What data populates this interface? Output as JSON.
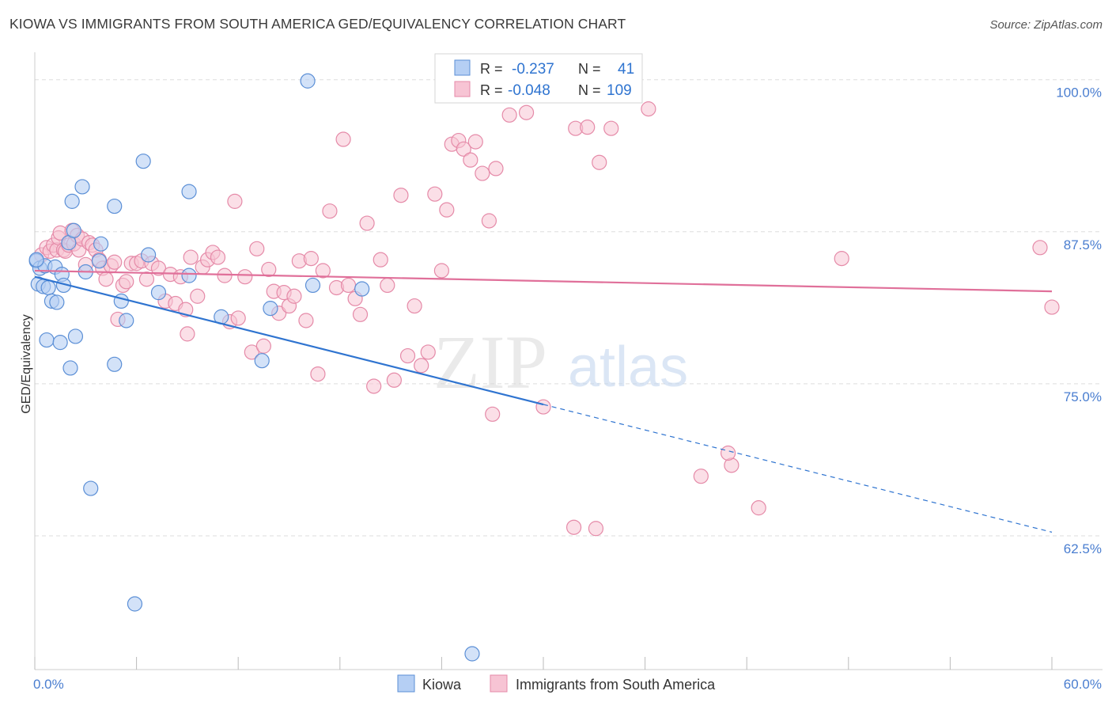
{
  "header": {
    "title": "KIOWA VS IMMIGRANTS FROM SOUTH AMERICA GED/EQUIVALENCY CORRELATION CHART",
    "source": "Source: ZipAtlas.com"
  },
  "watermark": {
    "zip": "ZIP",
    "atlas": "atlas"
  },
  "colors": {
    "kiowa_fill": "#b5cff4",
    "kiowa_stroke": "#5b8fd6",
    "kiowa_line": "#2f74d0",
    "immig_fill": "#f7c4d4",
    "immig_stroke": "#e58aa8",
    "immig_line": "#e0709a",
    "axis_label": "#4a7ed0",
    "grid": "#dddddd"
  },
  "chart_data": {
    "type": "scatter",
    "title": "KIOWA VS IMMIGRANTS FROM SOUTH AMERICA GED/EQUIVALENCY CORRELATION CHART",
    "xlabel": "",
    "ylabel": "GED/Equivalency",
    "xlim": [
      0,
      60
    ],
    "ylim": [
      51.5,
      102
    ],
    "x_tick_labels": [
      "0.0%",
      "60.0%"
    ],
    "y_ticks": [
      {
        "value": 100,
        "label": "100.0%"
      },
      {
        "value": 87.5,
        "label": "87.5%"
      },
      {
        "value": 75,
        "label": "75.0%"
      },
      {
        "value": 62.5,
        "label": "62.5%"
      }
    ],
    "grid": true,
    "legend_position": "top-center",
    "legend": [
      {
        "series": "Kiowa",
        "r_label": "R =",
        "r_value": "-0.237",
        "n_label": "N =",
        "n_value": "41"
      },
      {
        "series": "Immigrants from South America",
        "r_label": "R =",
        "r_value": "-0.048",
        "n_label": "N =",
        "n_value": "109"
      }
    ],
    "bottom_legend": [
      "Kiowa",
      "Immigrants from South America"
    ],
    "series": [
      {
        "name": "Kiowa",
        "trend": {
          "x0": 0,
          "y0": 83.8,
          "x1": 30,
          "y1": 73.3,
          "dash_x1": 60,
          "dash_y1": 62.8
        },
        "points": [
          [
            0.1,
            85.1
          ],
          [
            0.2,
            83.2
          ],
          [
            0.3,
            84.5
          ],
          [
            0.5,
            83.0
          ],
          [
            0.6,
            84.7
          ],
          [
            0.7,
            78.6
          ],
          [
            0.8,
            82.9
          ],
          [
            1.0,
            81.8
          ],
          [
            1.2,
            84.6
          ],
          [
            1.3,
            81.7
          ],
          [
            1.5,
            78.4
          ],
          [
            1.6,
            84.0
          ],
          [
            1.7,
            83.1
          ],
          [
            2.0,
            86.6
          ],
          [
            2.1,
            76.3
          ],
          [
            2.2,
            90.0
          ],
          [
            2.3,
            87.6
          ],
          [
            2.4,
            78.9
          ],
          [
            2.8,
            91.2
          ],
          [
            3.0,
            84.2
          ],
          [
            3.3,
            66.4
          ],
          [
            3.8,
            85.1
          ],
          [
            3.9,
            86.5
          ],
          [
            4.7,
            89.6
          ],
          [
            4.7,
            76.6
          ],
          [
            5.1,
            81.8
          ],
          [
            5.4,
            80.2
          ],
          [
            5.9,
            56.9
          ],
          [
            6.4,
            93.3
          ],
          [
            6.7,
            85.6
          ],
          [
            7.3,
            82.5
          ],
          [
            9.1,
            83.9
          ],
          [
            9.1,
            90.8
          ],
          [
            11.0,
            80.5
          ],
          [
            13.4,
            76.9
          ],
          [
            13.9,
            81.2
          ],
          [
            16.1,
            99.9
          ],
          [
            16.4,
            83.1
          ],
          [
            19.3,
            82.8
          ],
          [
            25.8,
            52.8
          ],
          [
            0.1,
            85.2
          ]
        ]
      },
      {
        "name": "Immigrants from South America",
        "trend": {
          "x0": 0,
          "y0": 84.3,
          "x1": 60,
          "y1": 82.6
        },
        "points": [
          [
            0.4,
            85.6
          ],
          [
            0.7,
            86.2
          ],
          [
            0.9,
            85.9
          ],
          [
            1.1,
            86.4
          ],
          [
            1.3,
            86.0
          ],
          [
            1.4,
            87.0
          ],
          [
            1.5,
            87.4
          ],
          [
            1.7,
            86.0
          ],
          [
            1.8,
            85.9
          ],
          [
            2.0,
            86.4
          ],
          [
            2.2,
            87.6
          ],
          [
            2.3,
            86.5
          ],
          [
            2.5,
            87.2
          ],
          [
            2.6,
            86.0
          ],
          [
            2.8,
            86.9
          ],
          [
            3.0,
            84.8
          ],
          [
            3.2,
            86.6
          ],
          [
            3.4,
            86.4
          ],
          [
            3.6,
            86.0
          ],
          [
            3.8,
            85.2
          ],
          [
            4.0,
            84.5
          ],
          [
            4.2,
            83.6
          ],
          [
            4.5,
            84.7
          ],
          [
            4.7,
            85.0
          ],
          [
            4.9,
            80.3
          ],
          [
            5.2,
            83.1
          ],
          [
            5.4,
            83.4
          ],
          [
            5.7,
            84.9
          ],
          [
            6.0,
            84.9
          ],
          [
            6.3,
            85.1
          ],
          [
            6.6,
            83.6
          ],
          [
            6.9,
            84.9
          ],
          [
            7.3,
            84.5
          ],
          [
            7.7,
            81.8
          ],
          [
            8.0,
            84.0
          ],
          [
            8.3,
            81.6
          ],
          [
            8.6,
            83.8
          ],
          [
            8.9,
            81.1
          ],
          [
            9.0,
            79.1
          ],
          [
            9.2,
            85.4
          ],
          [
            9.6,
            82.2
          ],
          [
            9.9,
            84.6
          ],
          [
            10.2,
            85.2
          ],
          [
            10.5,
            85.8
          ],
          [
            10.8,
            85.4
          ],
          [
            11.2,
            83.9
          ],
          [
            11.5,
            80.1
          ],
          [
            11.8,
            90.0
          ],
          [
            12.0,
            80.4
          ],
          [
            12.4,
            83.8
          ],
          [
            12.8,
            77.6
          ],
          [
            13.1,
            86.1
          ],
          [
            13.5,
            78.1
          ],
          [
            13.8,
            84.4
          ],
          [
            14.1,
            82.6
          ],
          [
            14.4,
            80.8
          ],
          [
            14.7,
            82.5
          ],
          [
            15.0,
            81.4
          ],
          [
            15.3,
            82.2
          ],
          [
            15.6,
            85.1
          ],
          [
            16.0,
            80.2
          ],
          [
            16.3,
            85.3
          ],
          [
            16.7,
            75.8
          ],
          [
            17.0,
            84.3
          ],
          [
            17.4,
            89.2
          ],
          [
            17.8,
            82.9
          ],
          [
            18.2,
            95.1
          ],
          [
            18.5,
            83.1
          ],
          [
            18.9,
            82.0
          ],
          [
            19.2,
            80.7
          ],
          [
            19.6,
            88.2
          ],
          [
            20.0,
            74.8
          ],
          [
            20.4,
            85.2
          ],
          [
            20.8,
            83.1
          ],
          [
            21.2,
            75.3
          ],
          [
            21.6,
            90.5
          ],
          [
            22.0,
            77.3
          ],
          [
            22.4,
            81.4
          ],
          [
            22.8,
            76.5
          ],
          [
            23.2,
            77.6
          ],
          [
            23.6,
            90.6
          ],
          [
            24.0,
            84.3
          ],
          [
            24.3,
            89.3
          ],
          [
            24.6,
            94.7
          ],
          [
            25.0,
            95.0
          ],
          [
            25.3,
            94.3
          ],
          [
            25.7,
            93.4
          ],
          [
            26.0,
            94.9
          ],
          [
            26.4,
            92.3
          ],
          [
            26.8,
            88.4
          ],
          [
            27.2,
            92.7
          ],
          [
            28.0,
            97.1
          ],
          [
            29.0,
            97.3
          ],
          [
            30.0,
            73.1
          ],
          [
            31.9,
            96.0
          ],
          [
            32.6,
            96.1
          ],
          [
            33.3,
            93.2
          ],
          [
            34.0,
            96.0
          ],
          [
            36.2,
            97.6
          ],
          [
            39.3,
            67.4
          ],
          [
            41.1,
            68.3
          ],
          [
            42.7,
            64.8
          ],
          [
            47.6,
            85.3
          ],
          [
            60.0,
            81.3
          ],
          [
            27.0,
            72.5
          ],
          [
            31.8,
            63.2
          ],
          [
            33.1,
            63.1
          ],
          [
            40.9,
            69.3
          ],
          [
            59.3,
            86.2
          ]
        ]
      }
    ]
  }
}
